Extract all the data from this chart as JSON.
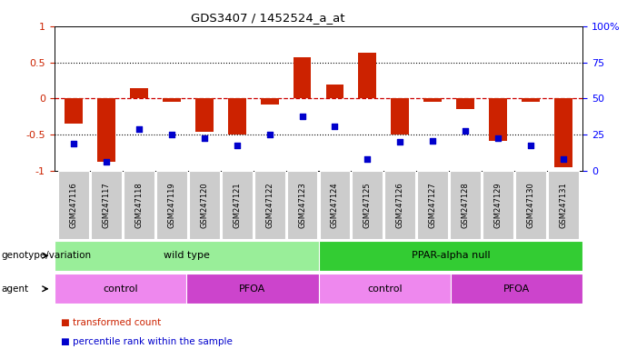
{
  "title": "GDS3407 / 1452524_a_at",
  "samples": [
    "GSM247116",
    "GSM247117",
    "GSM247118",
    "GSM247119",
    "GSM247120",
    "GSM247121",
    "GSM247122",
    "GSM247123",
    "GSM247124",
    "GSM247125",
    "GSM247126",
    "GSM247127",
    "GSM247128",
    "GSM247129",
    "GSM247130",
    "GSM247131"
  ],
  "bar_values": [
    -0.35,
    -0.87,
    0.14,
    -0.05,
    -0.46,
    -0.5,
    -0.08,
    0.57,
    0.2,
    0.63,
    -0.5,
    -0.05,
    -0.15,
    -0.58,
    -0.05,
    -0.95
  ],
  "dot_values": [
    -0.62,
    -0.87,
    -0.42,
    -0.5,
    -0.55,
    -0.65,
    -0.5,
    -0.25,
    -0.38,
    -0.83,
    -0.6,
    -0.58,
    -0.45,
    -0.55,
    -0.65,
    -0.83
  ],
  "bar_color": "#cc2200",
  "dot_color": "#0000cc",
  "ylim": [
    -1,
    1
  ],
  "yticks": [
    -1,
    -0.5,
    0,
    0.5,
    1
  ],
  "ytick_labels": [
    "-1",
    "-0.5",
    "0",
    "0.5",
    "1"
  ],
  "right_yticks": [
    0,
    25,
    50,
    75,
    100
  ],
  "right_ytick_labels": [
    "0",
    "25",
    "50",
    "75",
    "100%"
  ],
  "hline_color": "#cc0000",
  "dotted_lines": [
    -0.5,
    0.5
  ],
  "genotype_groups": [
    {
      "label": "wild type",
      "start": 0,
      "end": 7,
      "color": "#99ee99"
    },
    {
      "label": "PPAR-alpha null",
      "start": 8,
      "end": 15,
      "color": "#33cc33"
    }
  ],
  "agent_groups": [
    {
      "label": "control",
      "start": 0,
      "end": 3,
      "color": "#ee88ee"
    },
    {
      "label": "PFOA",
      "start": 4,
      "end": 7,
      "color": "#cc44cc"
    },
    {
      "label": "control",
      "start": 8,
      "end": 11,
      "color": "#ee88ee"
    },
    {
      "label": "PFOA",
      "start": 12,
      "end": 15,
      "color": "#cc44cc"
    }
  ],
  "genotype_label": "genotype/variation",
  "agent_label": "agent",
  "legend_items": [
    {
      "label": "transformed count",
      "color": "#cc2200"
    },
    {
      "label": "percentile rank within the sample",
      "color": "#0000cc"
    }
  ]
}
